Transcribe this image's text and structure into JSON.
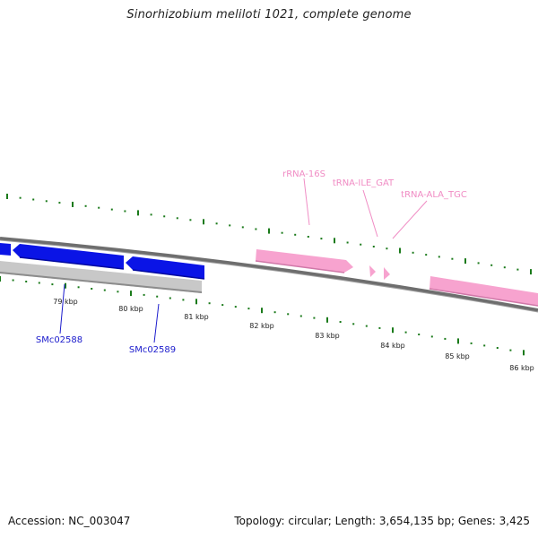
{
  "title": "Sinorhizobium meliloti 1021, complete genome",
  "footer": {
    "accession": "Accession: NC_003047",
    "info": "Topology: circular; Length: 3,654,135 bp; Genes: 3,425"
  },
  "colors": {
    "cds": "#0a14e6",
    "cds_label": "#1a1acc",
    "rna": "#f7a3cf",
    "rna_label": "#f08cc4",
    "ticks": "#1a7a1a",
    "backbone": "#808080",
    "gray_feature": "#c8c8c8"
  },
  "kbp_labels": [
    "79 kbp",
    "80 kbp",
    "81 kbp",
    "82 kbp",
    "83 kbp",
    "84 kbp",
    "85 kbp",
    "86 kbp"
  ],
  "genes": [
    {
      "label": "SMc02588"
    },
    {
      "label": "SMc02589"
    }
  ],
  "rnas": [
    {
      "label": "rRNA-16S"
    },
    {
      "label": "tRNA-ILE_GAT"
    },
    {
      "label": "tRNA-ALA_TGC"
    }
  ]
}
